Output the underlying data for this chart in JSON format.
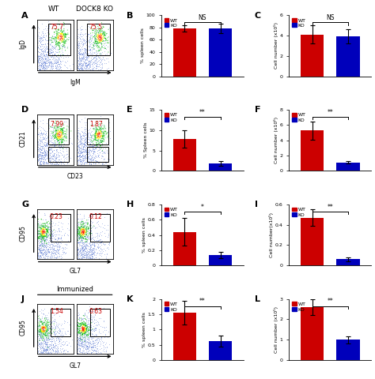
{
  "wt_color": "#CC0000",
  "ko_color": "#0000BB",
  "flow_rows": [
    {
      "label": "A",
      "num_wt": "75.7",
      "num_ko": "75.5",
      "xlabel": "IgM",
      "ylabel": "IgD",
      "wt_col_label": "WT",
      "ko_col_label": "DOCK8 KO",
      "immunized": false,
      "row_idx": 0
    },
    {
      "label": "D",
      "num_wt": "7.99",
      "num_ko": "1.87",
      "xlabel": "CD23",
      "ylabel": "CD21",
      "wt_col_label": "",
      "ko_col_label": "",
      "immunized": false,
      "row_idx": 1
    },
    {
      "label": "G",
      "num_wt": "0.23",
      "num_ko": "0.12",
      "xlabel": "GL7",
      "ylabel": "CD95",
      "wt_col_label": "",
      "ko_col_label": "",
      "immunized": false,
      "row_idx": 2
    },
    {
      "label": "J",
      "num_wt": "1.54",
      "num_ko": "0.63",
      "xlabel": "GL7",
      "ylabel": "CD95",
      "wt_col_label": "",
      "ko_col_label": "",
      "immunized": true,
      "row_idx": 3
    }
  ],
  "bar_panels": [
    {
      "label": "B",
      "wt_val": 78,
      "wt_err": 5,
      "ko_val": 78,
      "ko_err": 8,
      "ylim": [
        0,
        100
      ],
      "yticks": [
        0,
        20,
        40,
        60,
        80,
        100
      ],
      "ylabel": "% spleen cells",
      "sig": "NS"
    },
    {
      "label": "C",
      "wt_val": 4.1,
      "wt_err": 0.9,
      "ko_val": 3.9,
      "ko_err": 0.7,
      "ylim": [
        0,
        6
      ],
      "yticks": [
        0,
        2,
        4,
        6
      ],
      "ylabel": "Cell number (x10⁵)",
      "sig": "NS"
    },
    {
      "label": "E",
      "wt_val": 7.8,
      "wt_err": 2.2,
      "ko_val": 1.8,
      "ko_err": 0.5,
      "ylim": [
        0,
        15
      ],
      "yticks": [
        0,
        5,
        10,
        15
      ],
      "ylabel": "% Spleen cells",
      "sig": "**"
    },
    {
      "label": "F",
      "wt_val": 5.3,
      "wt_err": 1.2,
      "ko_val": 1.1,
      "ko_err": 0.15,
      "ylim": [
        0,
        8
      ],
      "yticks": [
        0,
        2,
        4,
        6,
        8
      ],
      "ylabel": "Cell number (x10⁶)",
      "sig": "**"
    },
    {
      "label": "H",
      "wt_val": 0.44,
      "wt_err": 0.18,
      "ko_val": 0.14,
      "ko_err": 0.04,
      "ylim": [
        0,
        0.8
      ],
      "yticks": [
        0.0,
        0.2,
        0.4,
        0.6,
        0.8
      ],
      "ylabel": "% spleen cells",
      "sig": "*"
    },
    {
      "label": "I",
      "wt_val": 0.47,
      "wt_err": 0.08,
      "ko_val": 0.06,
      "ko_err": 0.02,
      "ylim": [
        0,
        0.6
      ],
      "yticks": [
        0.0,
        0.2,
        0.4,
        0.6
      ],
      "ylabel": "Cell number(x10⁵)",
      "sig": "**"
    },
    {
      "label": "K",
      "wt_val": 1.55,
      "wt_err": 0.38,
      "ko_val": 0.62,
      "ko_err": 0.18,
      "ylim": [
        0.0,
        2.0
      ],
      "yticks": [
        0.0,
        0.5,
        1.0,
        1.5,
        2.0
      ],
      "ylabel": "% spleen cells",
      "sig": "**"
    },
    {
      "label": "L",
      "wt_val": 2.6,
      "wt_err": 0.4,
      "ko_val": 1.0,
      "ko_err": 0.18,
      "ylim": [
        0,
        3
      ],
      "yticks": [
        0,
        1,
        2,
        3
      ],
      "ylabel": "Cell number (x10⁵)",
      "sig": "**"
    }
  ]
}
